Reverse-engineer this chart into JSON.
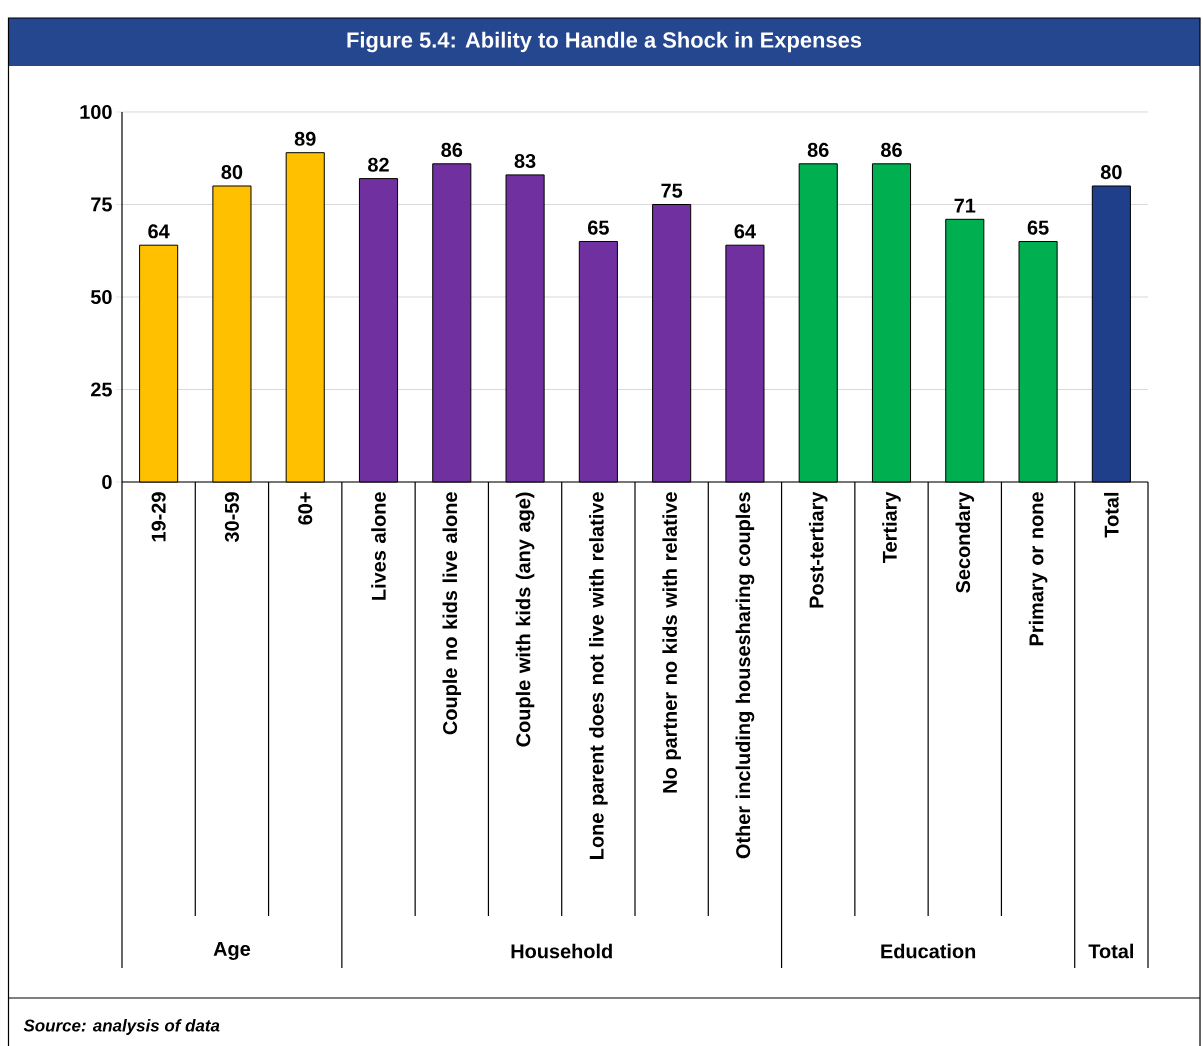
{
  "chart_data": {
    "type": "bar",
    "title": "Figure 5.4: Ability to Handle a Shock in Expenses",
    "categories": [
      "19-29",
      "30-59",
      "60+",
      "Lives alone",
      "Couple no kids live alone",
      "Couple with kids (any age)",
      "Lone parent does not live with relative",
      "No partner no kids with relative",
      "Other including housesharing couples",
      "Post-tertiary",
      "Tertiary",
      "Secondary",
      "Primary or none",
      "Total"
    ],
    "values": [
      64,
      80,
      89,
      82,
      86,
      83,
      65,
      75,
      64,
      86,
      86,
      71,
      65,
      80
    ],
    "colors": [
      "#ffc000",
      "#ffc000",
      "#ffc000",
      "#7030a0",
      "#7030a0",
      "#7030a0",
      "#7030a0",
      "#7030a0",
      "#7030a0",
      "#00b050",
      "#00b050",
      "#00b050",
      "#00b050",
      "#203f8a"
    ],
    "ylim": [
      0,
      100
    ],
    "yticks": [
      0,
      25,
      50,
      75,
      100
    ],
    "grid": "y",
    "data_labels": true,
    "annotations": [
      "Age",
      "Household",
      "Education",
      "Total",
      "Source: analysis of data"
    ]
  }
}
